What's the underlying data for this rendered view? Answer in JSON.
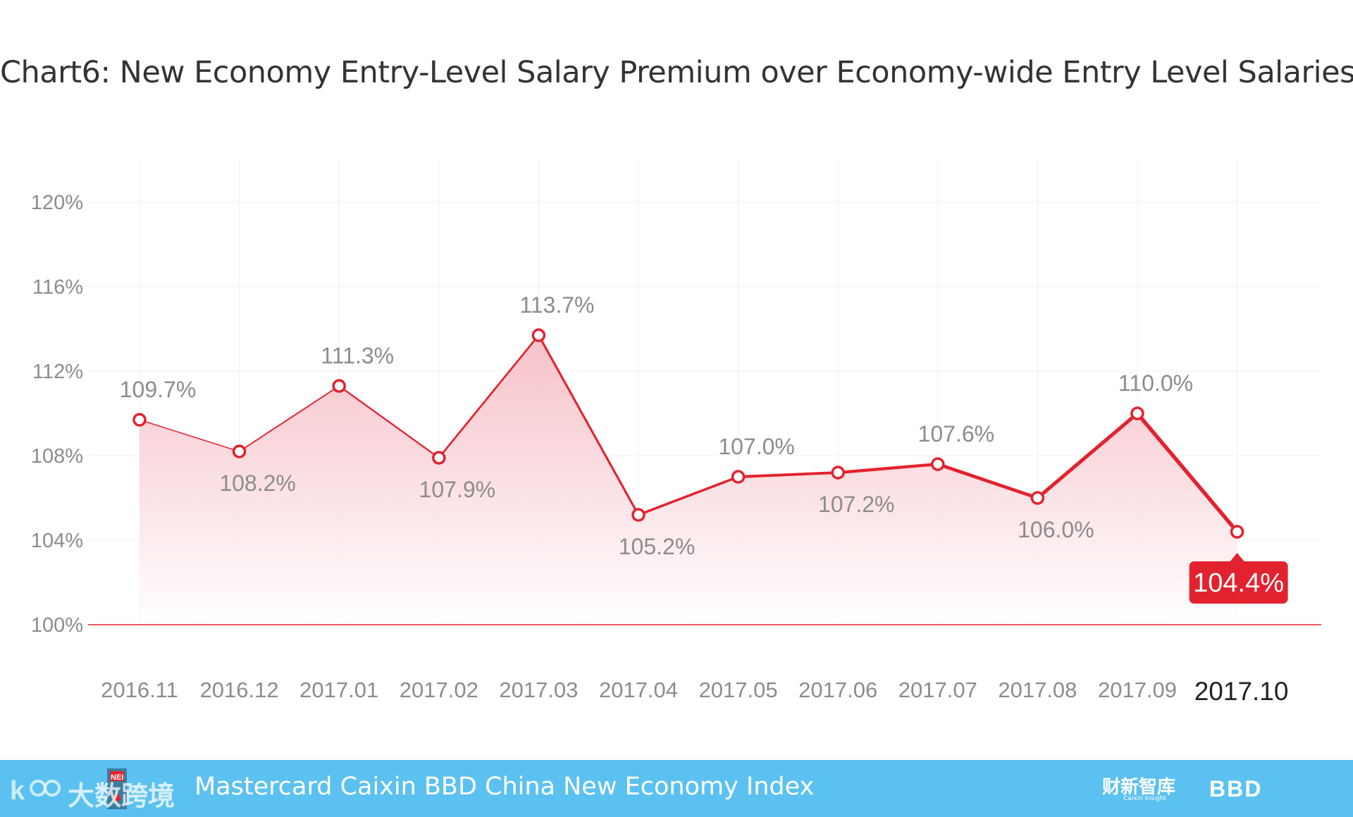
{
  "title": "Chart6: New Economy Entry-Level Salary Premium over Economy-wide Entry Level Salaries",
  "chart_data": {
    "type": "area",
    "title": "Chart6: New Economy Entry-Level Salary Premium over Economy-wide Entry Level Salaries",
    "xlabel": "",
    "ylabel": "",
    "categories": [
      "2016.11",
      "2016.12",
      "2017.01",
      "2017.02",
      "2017.03",
      "2017.04",
      "2017.05",
      "2017.06",
      "2017.07",
      "2017.08",
      "2017.09",
      "2017.10"
    ],
    "values": [
      109.7,
      108.2,
      111.3,
      107.9,
      113.7,
      105.2,
      107.0,
      107.2,
      107.6,
      106.0,
      110.0,
      104.4
    ],
    "value_labels": [
      "109.7%",
      "108.2%",
      "111.3%",
      "107.9%",
      "113.7%",
      "105.2%",
      "107.0%",
      "107.2%",
      "107.6%",
      "106.0%",
      "110.0%",
      "104.4%"
    ],
    "label_positions": [
      "above",
      "below",
      "above",
      "below",
      "above",
      "below",
      "above",
      "below",
      "above",
      "below",
      "above",
      "highlight"
    ],
    "yticks": [
      100,
      104,
      108,
      112,
      116,
      120
    ],
    "ytick_labels": [
      "100%",
      "104%",
      "108%",
      "112%",
      "116%",
      "120%"
    ],
    "ylim": [
      100,
      120
    ],
    "grid": true,
    "highlight_index": 11,
    "colors": {
      "line": "#e3222f",
      "marker_fill": "#ffffff",
      "area_top": "#f7c6cb",
      "grid": "#f0f0f0",
      "tick_label": "#8c8c8c",
      "value_label": "#8c8c8c",
      "highlight_bg": "#e3222f",
      "highlight_text": "#ffffff",
      "baseline": "#e3222f"
    }
  },
  "footer": {
    "title": "Mastercard Caixin BBD China New Economy Index",
    "watermark": "大数跨境",
    "watermark_badge": "NEI",
    "caixin_logo": "财新智库",
    "caixin_sub": "Caixin Insight",
    "bbd_logo": "BBD",
    "background": "#5bc1f1"
  }
}
